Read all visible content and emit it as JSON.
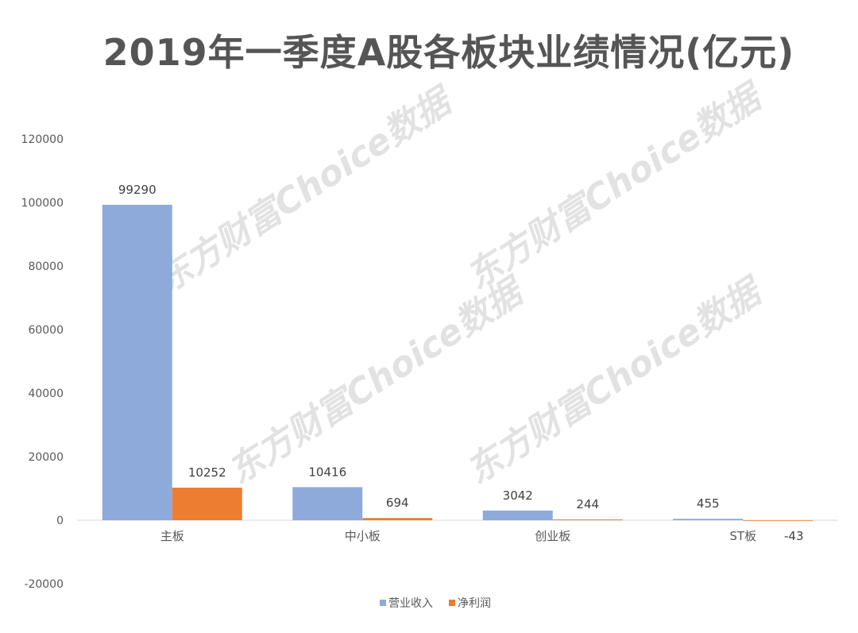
{
  "chart_data": {
    "type": "bar",
    "title": "2019年一季度A股各板块业绩情况(亿元)",
    "categories": [
      "主板",
      "中小板",
      "创业板",
      "ST板"
    ],
    "series": [
      {
        "name": "营业收入",
        "values": [
          99290,
          10416,
          3042,
          455
        ],
        "color": "#8eaadb"
      },
      {
        "name": "净利润",
        "values": [
          10252,
          694,
          244,
          -43
        ],
        "color": "#ed7d31"
      }
    ],
    "ylim": [
      -20000,
      120000
    ],
    "yticks": [
      -20000,
      0,
      20000,
      40000,
      60000,
      80000,
      100000,
      120000
    ],
    "data_labels": true,
    "legend_position": "bottom",
    "grid": false
  },
  "watermark": "东方财富Choice数据"
}
